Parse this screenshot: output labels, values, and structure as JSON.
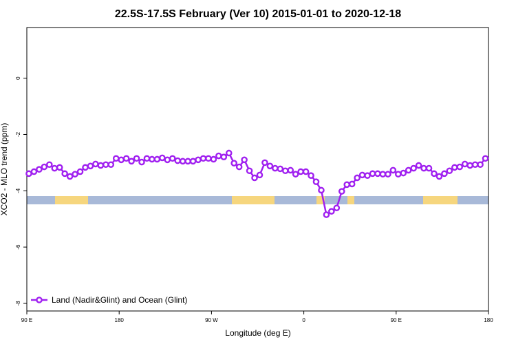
{
  "chart_data": {
    "type": "line",
    "title": "22.5S-17.5S February (Ver 10)   2015-01-01 to 2020-12-18",
    "x_label": "Longitude (deg E)",
    "y_label": "XCO2 - MLO trend (ppm)",
    "xlim": [
      90,
      540
    ],
    "ylim": [
      -8.27,
      1.8
    ],
    "xticks": [
      {
        "value": 90,
        "label": "90 E"
      },
      180,
      {
        "value": 270,
        "label": "90 W"
      },
      {
        "value": 360,
        "label": "0"
      },
      {
        "value": 450,
        "label": "90 E"
      },
      {
        "value": 540,
        "label": "180"
      }
    ],
    "yticks": [
      0,
      -2,
      -4,
      -6,
      -8
    ],
    "legend": "bottom-left",
    "x": [
      92,
      97,
      102,
      107,
      112,
      117,
      122,
      127,
      132,
      137,
      142,
      147,
      152,
      157,
      162,
      167,
      172,
      177,
      182,
      187,
      192,
      197,
      202,
      207,
      212,
      217,
      222,
      227,
      232,
      237,
      242,
      247,
      252,
      257,
      262,
      267,
      272,
      277,
      282,
      287,
      292,
      297,
      302,
      307,
      312,
      317,
      322,
      327,
      332,
      337,
      342,
      347,
      352,
      357,
      362,
      367,
      372,
      377,
      382,
      387,
      392,
      397,
      402,
      407,
      412,
      417,
      422,
      427,
      432,
      437,
      442,
      447,
      452,
      457,
      462,
      467,
      472,
      477,
      482,
      487,
      492,
      497,
      502,
      507,
      512,
      517,
      522,
      527,
      532,
      537
    ],
    "series": [
      {
        "name": "Land (Nadir&Glint) and Ocean (Glint)",
        "color": "#a020f0",
        "values": [
          -3.39,
          -3.32,
          -3.24,
          -3.15,
          -3.07,
          -3.2,
          -3.17,
          -3.39,
          -3.49,
          -3.41,
          -3.32,
          -3.17,
          -3.12,
          -3.05,
          -3.1,
          -3.07,
          -3.07,
          -2.85,
          -2.9,
          -2.85,
          -2.95,
          -2.85,
          -2.98,
          -2.85,
          -2.88,
          -2.88,
          -2.83,
          -2.9,
          -2.85,
          -2.93,
          -2.95,
          -2.95,
          -2.95,
          -2.9,
          -2.85,
          -2.85,
          -2.88,
          -2.76,
          -2.8,
          -2.66,
          -3.02,
          -3.15,
          -2.9,
          -3.29,
          -3.54,
          -3.44,
          -3.0,
          -3.12,
          -3.2,
          -3.22,
          -3.29,
          -3.27,
          -3.41,
          -3.32,
          -3.32,
          -3.46,
          -3.68,
          -3.98,
          -4.85,
          -4.73,
          -4.61,
          -4.02,
          -3.78,
          -3.76,
          -3.54,
          -3.44,
          -3.46,
          -3.39,
          -3.39,
          -3.41,
          -3.41,
          -3.27,
          -3.41,
          -3.37,
          -3.27,
          -3.2,
          -3.1,
          -3.2,
          -3.2,
          -3.39,
          -3.49,
          -3.39,
          -3.29,
          -3.17,
          -3.15,
          -3.05,
          -3.1,
          -3.07,
          -3.07,
          -2.85
        ]
      }
    ]
  }
}
